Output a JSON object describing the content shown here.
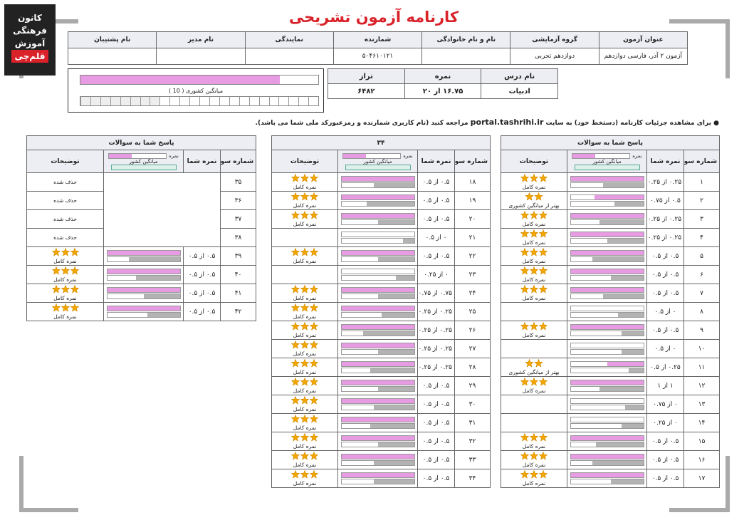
{
  "logo": {
    "line1": "کانون",
    "line2": "فرهنگی",
    "line3": "آموزش",
    "line4": "قلم‌چی"
  },
  "title": "کارنامه آزمون تشریحی",
  "header": {
    "columns": [
      {
        "label": "عنوان آزمون",
        "value": "آزمون ۲ آذر، فارسی دوازدهم"
      },
      {
        "label": "گروه آزمایشی",
        "value": "دوازدهم تجربی"
      },
      {
        "label": "نام و نام خانوادگی"
      },
      {
        "label": "شمارنده",
        "value": "۵۰۴۶۱۰۱۲۱"
      },
      {
        "label": "نمایندگی"
      },
      {
        "label": "نام مدیر"
      },
      {
        "label": "نام پشتیبان"
      }
    ]
  },
  "score_table": {
    "columns": [
      "نام درس",
      "نمره",
      "تراز"
    ],
    "row": [
      "ادبیات",
      "۱۶.۷۵ از ۲۰",
      "۶۴۸۲"
    ]
  },
  "score_bar": {
    "label": "میانگین کشوری ( 10 )",
    "value": 16.75,
    "xlim": [
      0,
      20
    ]
  },
  "notice": {
    "before": "برای مشاهده جزئیات کارنامه (دستخط خود) به سایت",
    "link": "portal.tashrihi.ir",
    "after": "مراجعه کنید (نام کاربری شمارنده و رمزعبورکد ملی شما می باشد)."
  },
  "columns": {
    "question": "شماره سوال",
    "score": "نمره شما",
    "notes": "توضیحات"
  },
  "bar_legend": {
    "score": "نمره",
    "avg": "میانگین کشور"
  },
  "panels": [
    {
      "title": "پاسخ شما به سوالات",
      "rows": [
        {
          "q": "۱",
          "score": "۰.۲۵ از ۰.۲۵",
          "pct": 100,
          "avg": 55,
          "stars": 3,
          "note": "نمره کامل"
        },
        {
          "q": "۲",
          "score": "۰.۵ از ۰.۷۵",
          "pct": 67,
          "avg": 40,
          "stars": 2,
          "note": "بهتر از میانگین کشوری"
        },
        {
          "q": "۳",
          "score": "۰.۲۵ از ۰.۲۵",
          "pct": 100,
          "avg": 60,
          "stars": 3,
          "note": "نمره کامل"
        },
        {
          "q": "۴",
          "score": "۰.۲۵ از ۰.۲۵",
          "pct": 100,
          "avg": 50,
          "stars": 3,
          "note": "نمره کامل"
        },
        {
          "q": "۵",
          "score": "۰.۵ از ۰.۵",
          "pct": 100,
          "avg": 70,
          "stars": 3,
          "note": "نمره کامل"
        },
        {
          "q": "۶",
          "score": "۰.۵ از ۰.۵",
          "pct": 100,
          "avg": 45,
          "stars": 3,
          "note": "نمره کامل"
        },
        {
          "q": "۷",
          "score": "۰.۵ از ۰.۵",
          "pct": 100,
          "avg": 55,
          "stars": 3,
          "note": "نمره کامل"
        },
        {
          "q": "۸",
          "score": "۰ از ۰.۵",
          "pct": 0,
          "avg": 35
        },
        {
          "q": "۹",
          "score": "۰.۵ از ۰.۵",
          "pct": 100,
          "avg": 30,
          "stars": 3,
          "note": "نمره کامل"
        },
        {
          "q": "۱۰",
          "score": "۰ از ۰.۵",
          "pct": 0,
          "avg": 30
        },
        {
          "q": "۱۱",
          "score": "۰.۲۵ از ۰.۵",
          "pct": 50,
          "avg": 20,
          "stars": 2,
          "note": "بهتر از میانگین کشوری"
        },
        {
          "q": "۱۲",
          "score": "۱ از ۱",
          "pct": 100,
          "avg": 60,
          "stars": 3,
          "note": "نمره کامل"
        },
        {
          "q": "۱۳",
          "score": "۰ از ۰.۷۵",
          "pct": 0,
          "avg": 25
        },
        {
          "q": "۱۴",
          "score": "۰ از ۰.۲۵",
          "pct": 0,
          "avg": 30
        },
        {
          "q": "۱۵",
          "score": "۰.۵ از ۰.۵",
          "pct": 100,
          "avg": 65,
          "stars": 3,
          "note": "نمره کامل"
        },
        {
          "q": "۱۶",
          "score": "۰.۵ از ۰.۵",
          "pct": 100,
          "avg": 70,
          "stars": 3,
          "note": "نمره کامل"
        },
        {
          "q": "۱۷",
          "score": "۰.۵ از ۰.۵",
          "pct": 100,
          "avg": 45,
          "stars": 3,
          "note": "نمره کامل"
        }
      ]
    },
    {
      "title": "۳۴",
      "rows": [
        {
          "q": "۱۸",
          "score": "۰.۵ از ۰.۵",
          "pct": 100,
          "avg": 55,
          "stars": 3,
          "note": "نمره کامل"
        },
        {
          "q": "۱۹",
          "score": "۰.۵ از ۰.۵",
          "pct": 100,
          "avg": 65,
          "stars": 3,
          "note": "نمره کامل"
        },
        {
          "q": "۲۰",
          "score": "۰.۵ از ۰.۵",
          "pct": 100,
          "avg": 50,
          "stars": 3,
          "note": "نمره کامل"
        },
        {
          "q": "۲۱",
          "score": "۰ از ۰.۵",
          "pct": 0,
          "avg": 15
        },
        {
          "q": "۲۲",
          "score": "۰.۵ از ۰.۵",
          "pct": 100,
          "avg": 50,
          "stars": 3,
          "note": "نمره کامل"
        },
        {
          "q": "۲۳",
          "score": "۰ از ۰.۲۵",
          "pct": 0,
          "avg": 25
        },
        {
          "q": "۲۴",
          "score": "۰.۷۵ از ۰.۷۵",
          "pct": 100,
          "avg": 50,
          "stars": 3,
          "note": "نمره کامل"
        },
        {
          "q": "۲۵",
          "score": "۰.۲۵ از ۰.۲۵",
          "pct": 100,
          "avg": 45,
          "stars": 3,
          "note": "نمره کامل"
        },
        {
          "q": "۲۶",
          "score": "۰.۲۵ از ۰.۲۵",
          "pct": 100,
          "avg": 70,
          "stars": 3,
          "note": "نمره کامل"
        },
        {
          "q": "۲۷",
          "score": "۰.۲۵ از ۰.۲۵",
          "pct": 100,
          "avg": 50,
          "stars": 3,
          "note": "نمره کامل"
        },
        {
          "q": "۲۸",
          "score": "۰.۲۵ از ۰.۲۵",
          "pct": 100,
          "avg": 60,
          "stars": 3,
          "note": "نمره کامل"
        },
        {
          "q": "۲۹",
          "score": "۰.۵ از ۰.۵",
          "pct": 100,
          "avg": 50,
          "stars": 3,
          "note": "نمره کامل"
        },
        {
          "q": "۳۰",
          "score": "۰.۵ از ۰.۵",
          "pct": 100,
          "avg": 55,
          "stars": 3,
          "note": "نمره کامل"
        },
        {
          "q": "۳۱",
          "score": "۰.۵ از ۰.۵",
          "pct": 100,
          "avg": 60,
          "stars": 3,
          "note": "نمره کامل"
        },
        {
          "q": "۳۲",
          "score": "۰.۵ از ۰.۵",
          "pct": 100,
          "avg": 50,
          "stars": 3,
          "note": "نمره کامل"
        },
        {
          "q": "۳۳",
          "score": "۰.۵ از ۰.۵",
          "pct": 100,
          "avg": 55,
          "stars": 3,
          "note": "نمره کامل"
        },
        {
          "q": "۳۴",
          "score": "۰.۵ از ۰.۵",
          "pct": 100,
          "avg": 55,
          "stars": 3,
          "note": "نمره کامل"
        }
      ]
    },
    {
      "title": "پاسخ شما به سوالات",
      "rows": [
        {
          "q": "۳۵",
          "note": "حذف شده"
        },
        {
          "q": "۳۶",
          "note": "حذف شده"
        },
        {
          "q": "۳۷",
          "note": "حذف شده"
        },
        {
          "q": "۳۸",
          "note": "حذف شده"
        },
        {
          "q": "۳۹",
          "score": "۰.۵ از ۰.۵",
          "pct": 100,
          "avg": 70,
          "stars": 3,
          "note": "نمره کامل"
        },
        {
          "q": "۴۰",
          "score": "۰.۵ از ۰.۵",
          "pct": 100,
          "avg": 60,
          "stars": 3,
          "note": "نمره کامل"
        },
        {
          "q": "۴۱",
          "score": "۰.۵ از ۰.۵",
          "pct": 100,
          "avg": 50,
          "stars": 3,
          "note": "نمره کامل"
        },
        {
          "q": "۴۲",
          "score": "۰.۵ از ۰.۵",
          "pct": 100,
          "avg": 45,
          "stars": 3,
          "note": "نمره کامل"
        }
      ]
    }
  ]
}
